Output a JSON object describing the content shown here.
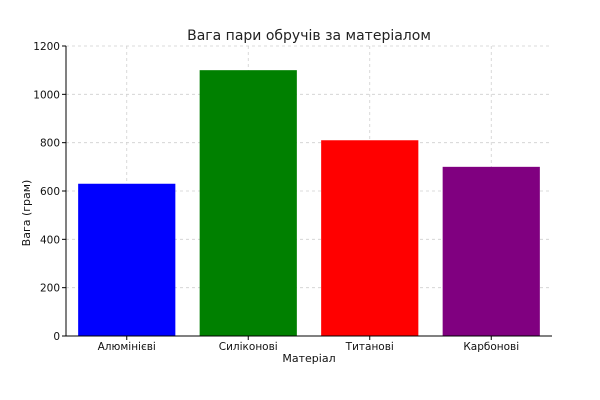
{
  "chart_data": {
    "type": "bar",
    "title": "Вага пари обручів за матеріалом",
    "xlabel": "Матеріал",
    "ylabel": "Вага (грам)",
    "categories": [
      "Алюмінієві",
      "Силіконові",
      "Титанові",
      "Карбонові"
    ],
    "values": [
      630,
      1100,
      810,
      700
    ],
    "colors": [
      "#0000ff",
      "#008000",
      "#ff0000",
      "#800080"
    ],
    "ylim": [
      0,
      1200
    ],
    "yticks": [
      0,
      200,
      400,
      600,
      800,
      1000,
      1200
    ],
    "grid": true
  }
}
